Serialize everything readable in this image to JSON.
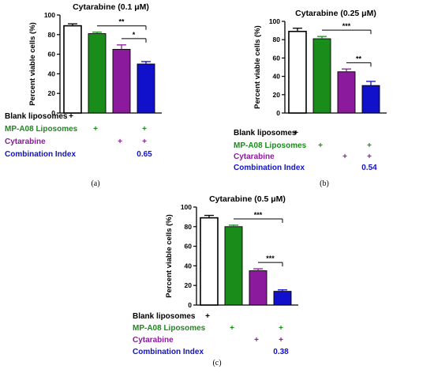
{
  "colors": {
    "blank": "#ffffff",
    "mp": "#1a8c1a",
    "cyt": "#8b1a9c",
    "combo": "#1111cc",
    "text_blank": "#000000",
    "text_mp": "#1a8c1a",
    "text_cyt": "#8b1a9c",
    "text_combo": "#1111cc"
  },
  "row_labels": [
    "Blank liposomes",
    "MP-A08 Liposomes",
    "Cytarabine",
    "Combination Index"
  ],
  "chart_data": [
    {
      "panel": "(a)",
      "type": "bar",
      "title": "Cytarabine (0.1 μM)",
      "ylabel": "Percent viable cells (%)",
      "ylim": [
        0,
        100
      ],
      "yticks": [
        0,
        20,
        40,
        60,
        80,
        100
      ],
      "grid": false,
      "categories": [
        "Blank liposomes",
        "MP-A08 Liposomes",
        "Cytarabine",
        "Combination"
      ],
      "values": [
        89,
        81,
        65,
        50
      ],
      "errors": [
        2,
        1.5,
        4.5,
        2.5
      ],
      "significance": [
        {
          "from": 1,
          "to": 3,
          "label": "**"
        },
        {
          "from": 2,
          "to": 3,
          "label": "*"
        }
      ],
      "combination_index": "0.65"
    },
    {
      "panel": "(b)",
      "type": "bar",
      "title": "Cytarabine (0.25 μM)",
      "ylabel": "Percent viable cells (%)",
      "ylim": [
        0,
        100
      ],
      "yticks": [
        0,
        20,
        40,
        60,
        80,
        100
      ],
      "grid": false,
      "categories": [
        "Blank liposomes",
        "MP-A08 Liposomes",
        "Cytarabine",
        "Combination"
      ],
      "values": [
        89,
        81,
        45,
        30
      ],
      "errors": [
        3.5,
        2.5,
        3,
        4.5
      ],
      "significance": [
        {
          "from": 1,
          "to": 3,
          "label": "***"
        },
        {
          "from": 2,
          "to": 3,
          "label": "**"
        }
      ],
      "combination_index": "0.54"
    },
    {
      "panel": "(c)",
      "type": "bar",
      "title": "Cytarabine (0.5 μM)",
      "ylabel": "Percent viable cells (%)",
      "ylim": [
        0,
        100
      ],
      "yticks": [
        0,
        20,
        40,
        60,
        80,
        100
      ],
      "grid": false,
      "categories": [
        "Blank liposomes",
        "MP-A08 Liposomes",
        "Cytarabine",
        "Combination"
      ],
      "values": [
        89,
        80,
        35,
        14
      ],
      "errors": [
        2.5,
        1.5,
        2,
        1.5
      ],
      "significance": [
        {
          "from": 1,
          "to": 3,
          "label": "***"
        },
        {
          "from": 2,
          "to": 3,
          "label": "***"
        }
      ],
      "combination_index": "0.38"
    }
  ],
  "treatment_matrix": [
    [
      true,
      false,
      false,
      false
    ],
    [
      false,
      true,
      false,
      true
    ],
    [
      false,
      false,
      true,
      true
    ]
  ]
}
